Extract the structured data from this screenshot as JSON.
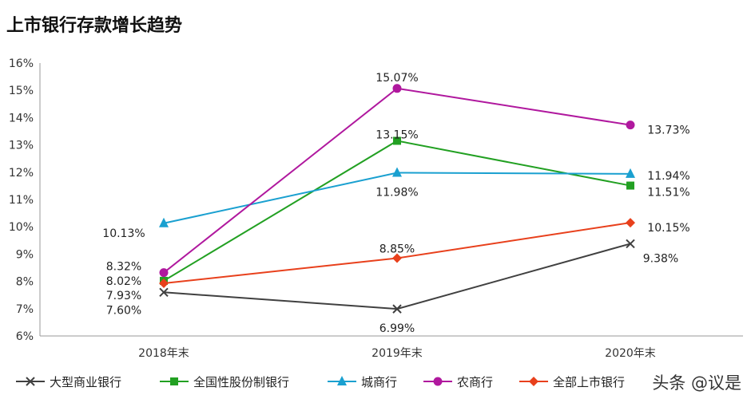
{
  "title": "上市银行存款增长趋势",
  "watermark": "头条 @议是",
  "chart_data": {
    "type": "line",
    "title": "上市银行存款增长趋势",
    "categories": [
      "2018年末",
      "2019年末",
      "2020年末"
    ],
    "yticks": [
      "6%",
      "7%",
      "8%",
      "9%",
      "10%",
      "11%",
      "12%",
      "13%",
      "14%",
      "15%",
      "16%"
    ],
    "ylim": [
      6,
      16
    ],
    "grid": false,
    "legend": "bottom",
    "series": [
      {
        "name": "大型商业银行",
        "values": [
          7.6,
          6.99,
          9.38
        ],
        "labels": [
          "7.60%",
          "6.99%",
          "9.38%"
        ],
        "color": "#404040",
        "marker": "x"
      },
      {
        "name": "全国性股份制银行",
        "values": [
          8.02,
          13.15,
          11.51
        ],
        "labels": [
          "8.02%",
          "13.15%",
          "11.51%"
        ],
        "color": "#22a022",
        "marker": "square"
      },
      {
        "name": "城商行",
        "values": [
          10.13,
          11.98,
          11.94
        ],
        "labels": [
          "10.13%",
          "11.98%",
          "11.94%"
        ],
        "color": "#1aa0d0",
        "marker": "triangle"
      },
      {
        "name": "农商行",
        "values": [
          8.32,
          15.07,
          13.73
        ],
        "labels": [
          "8.32%",
          "15.07%",
          "13.73%"
        ],
        "color": "#b0189e",
        "marker": "circle"
      },
      {
        "name": "全部上市银行",
        "values": [
          7.93,
          8.85,
          10.15
        ],
        "labels": [
          "7.93%",
          "8.85%",
          "10.15%"
        ],
        "color": "#e8401c",
        "marker": "diamond"
      }
    ]
  }
}
